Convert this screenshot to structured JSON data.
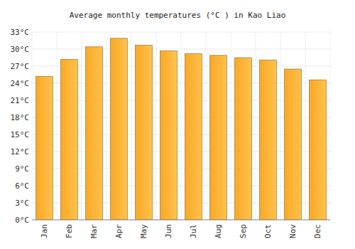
{
  "chart_data": {
    "type": "bar",
    "title": "Average monthly temperatures (°C ) in Kao Liao",
    "categories": [
      "Jan",
      "Feb",
      "Mar",
      "Apr",
      "May",
      "Jun",
      "Jul",
      "Aug",
      "Sep",
      "Oct",
      "Nov",
      "Dec"
    ],
    "values": [
      25.2,
      28.2,
      30.4,
      31.9,
      30.7,
      29.7,
      29.2,
      28.9,
      28.5,
      28.1,
      26.5,
      24.6
    ],
    "color": "#f9a825",
    "ylim": [
      0,
      33
    ],
    "yticks": [
      {
        "value": 0,
        "label": "0°C"
      },
      {
        "value": 3,
        "label": "3°C"
      },
      {
        "value": 6,
        "label": "6°C"
      },
      {
        "value": 9,
        "label": "9°C"
      },
      {
        "value": 12,
        "label": "12°C"
      },
      {
        "value": 15,
        "label": "15°C"
      },
      {
        "value": 18,
        "label": "18°C"
      },
      {
        "value": 21,
        "label": "21°C"
      },
      {
        "value": 24,
        "label": "24°C"
      },
      {
        "value": 27,
        "label": "27°C"
      },
      {
        "value": 30,
        "label": "30°C"
      },
      {
        "value": 33,
        "label": "33°C"
      }
    ],
    "grid": true
  }
}
